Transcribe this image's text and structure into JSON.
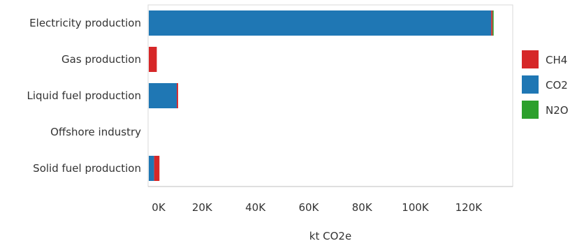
{
  "chart_data": {
    "type": "bar",
    "orientation": "horizontal",
    "stacked": true,
    "categories": [
      "Electricity production",
      "Gas production",
      "Liquid fuel production",
      "Offshore industry",
      "Solid fuel production"
    ],
    "series": [
      {
        "name": "CO2",
        "color": "#1f77b4",
        "values": [
          128500,
          0,
          10500,
          0,
          2000
        ]
      },
      {
        "name": "CH4",
        "color": "#d62728",
        "values": [
          500,
          3000,
          500,
          0,
          2000
        ]
      },
      {
        "name": "N2O",
        "color": "#2ca02c",
        "values": [
          300,
          0,
          0,
          0,
          0
        ]
      }
    ],
    "xlabel": "kt CO2e",
    "ylabel": "",
    "xlim": [
      0,
      135000
    ],
    "x_ticks": [
      0,
      20000,
      40000,
      60000,
      80000,
      100000,
      120000
    ],
    "x_tick_labels": [
      "0K",
      "20K",
      "40K",
      "60K",
      "80K",
      "100K",
      "120K"
    ],
    "legend": {
      "placement": "right",
      "entries": [
        {
          "name": "CH4",
          "color": "#d62728"
        },
        {
          "name": "CO2",
          "color": "#1f77b4"
        },
        {
          "name": "N2O",
          "color": "#2ca02c"
        }
      ]
    },
    "grid": false
  }
}
